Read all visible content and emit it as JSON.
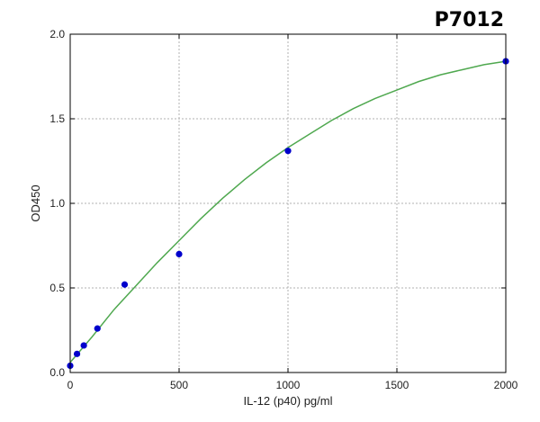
{
  "corner_label": "P7012",
  "chart_data": {
    "type": "scatter",
    "xlabel": "IL-12 (p40) pg/ml",
    "ylabel": "OD450",
    "xlim": [
      0,
      2000
    ],
    "ylim": [
      0,
      2.0
    ],
    "x_ticks": [
      "0",
      "500",
      "1000",
      "1500",
      "2000"
    ],
    "y_ticks": [
      "0.0",
      "0.5",
      "1.0",
      "1.5",
      "2.0"
    ],
    "x_tick_values": [
      0,
      500,
      1000,
      1500,
      2000
    ],
    "y_tick_values": [
      0,
      0.5,
      1.0,
      1.5,
      2.0
    ],
    "grid": true,
    "points": {
      "x": [
        0,
        31.25,
        62.5,
        125,
        250,
        500,
        1000,
        2000
      ],
      "y": [
        0.04,
        0.11,
        0.16,
        0.26,
        0.52,
        0.7,
        1.31,
        1.84
      ]
    },
    "fit_curve": {
      "x": [
        0,
        100,
        200,
        300,
        400,
        500,
        600,
        700,
        800,
        900,
        1000,
        1100,
        1200,
        1300,
        1400,
        1500,
        1600,
        1700,
        1800,
        1900,
        2000
      ],
      "y": [
        0.06,
        0.21,
        0.37,
        0.51,
        0.65,
        0.78,
        0.91,
        1.03,
        1.14,
        1.24,
        1.33,
        1.41,
        1.49,
        1.56,
        1.62,
        1.67,
        1.72,
        1.76,
        1.79,
        1.82,
        1.84
      ]
    },
    "colors": {
      "points": "#0000cc",
      "curve": "#4fa84f",
      "grid": "#b0b0b0",
      "axis": "#000000"
    }
  }
}
